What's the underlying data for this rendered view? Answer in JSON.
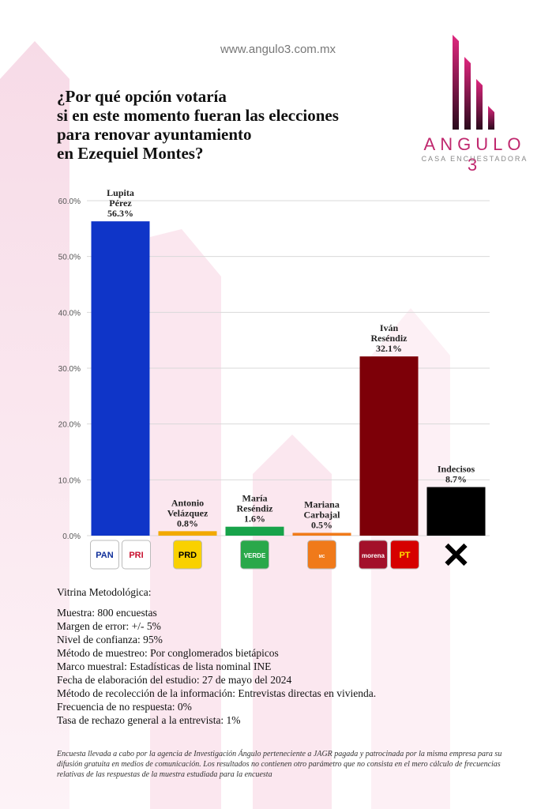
{
  "header": {
    "website": "www.angulo3.com.mx",
    "title_lines": [
      "¿Por qué opción votaría",
      "si en este momento fueran las elecciones",
      "para renovar ayuntamiento",
      "en Ezequiel Montes?"
    ]
  },
  "logo": {
    "name": "ANGULO 3",
    "subtitle": "CASA ENCUESTADORA"
  },
  "chart_data": {
    "type": "bar",
    "categories": [
      "Lupita Pérez",
      "Antonio Velázquez",
      "María Reséndiz",
      "Mariana Carbajal",
      "Iván Reséndiz",
      "Indecisos"
    ],
    "values": [
      56.3,
      0.8,
      1.6,
      0.5,
      32.1,
      8.7
    ],
    "label_lines": [
      [
        "Lupita",
        "Pérez",
        "56.3%"
      ],
      [
        "Antonio",
        "Velázquez",
        "0.8%"
      ],
      [
        "María",
        "Reséndiz",
        "1.6%"
      ],
      [
        "Mariana",
        "Carbajal",
        "0.5%"
      ],
      [
        "Iván",
        "Reséndiz",
        "32.1%"
      ],
      [
        "Indecisos",
        "8.7%"
      ]
    ],
    "colors": [
      "#0f35c8",
      "#f2a900",
      "#17a34a",
      "#f07a1a",
      "#7d0008",
      "#000000"
    ],
    "ylim": [
      0,
      60
    ],
    "yticks": [
      0,
      10,
      20,
      30,
      40,
      50,
      60
    ],
    "ytick_labels": [
      "0.0%",
      "10.0%",
      "20.0%",
      "30.0%",
      "40.0%",
      "50.0%",
      "60.0%"
    ],
    "grid": true,
    "party_logos": [
      [
        "PAN",
        "PRI"
      ],
      [
        "PRD"
      ],
      [
        "VERDE"
      ],
      [
        "MOVIMIENTO CIUDADANO"
      ],
      [
        "morena",
        "PT"
      ],
      [
        "X"
      ]
    ]
  },
  "methodology": {
    "heading": "Vitrina Metodológica:",
    "lines": [
      "Muestra: 800 encuestas",
      "Margen de error: +/- 5%",
      "Nivel de confianza: 95%",
      "Método de muestreo: Por conglomerados bietápicos",
      "Marco muestral: Estadísticas de lista nominal INE",
      "Fecha de elaboración del estudio: 27 de mayo del 2024",
      "Método de recolección de la información: Entrevistas directas en vivienda.",
      "Frecuencia de no respuesta: 0%",
      "Tasa de rechazo general a la entrevista: 1%"
    ]
  },
  "disclaimer": "Encuesta llevada a cabo por la agencia de Investigación Ángulo perteneciente a JAGR pagada y patrocinada por la misma empresa para su difusión gratuita en medios de comunicación. Los resultados no contienen otro parámetro que no consista en el mero cálculo de frecuencias relativas de las respuestas de la muestra estudiada para la encuesta"
}
